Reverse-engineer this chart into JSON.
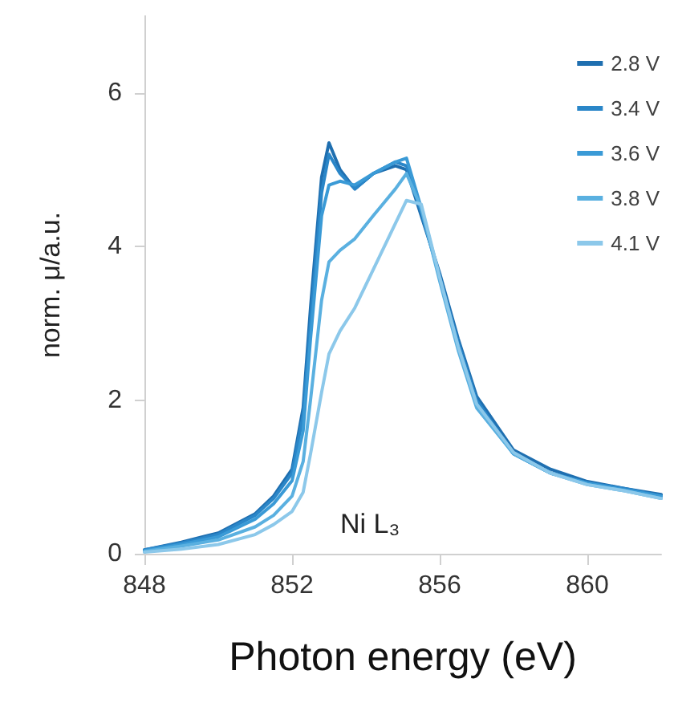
{
  "chart_data": {
    "type": "line",
    "xlabel": "Photon energy (eV)",
    "ylabel": "norm. μ/a.u.",
    "annotations": [
      "Ni L₃"
    ],
    "x": [
      848,
      849,
      850,
      851,
      851.5,
      852,
      852.3,
      852.5,
      852.8,
      853,
      853.3,
      853.7,
      854.2,
      854.8,
      855.1,
      855.5,
      856,
      856.5,
      857,
      858,
      859,
      860,
      861,
      862
    ],
    "series": [
      {
        "name": "2.8 V",
        "color": "#1f6fb0",
        "values": [
          0.05,
          0.15,
          0.27,
          0.52,
          0.75,
          1.1,
          1.9,
          3.2,
          4.9,
          5.35,
          5.0,
          4.75,
          4.95,
          5.05,
          5.0,
          4.4,
          3.65,
          2.8,
          2.05,
          1.35,
          1.1,
          0.94,
          0.85,
          0.77
        ]
      },
      {
        "name": "3.4 V",
        "color": "#2a86c8",
        "values": [
          0.05,
          0.14,
          0.25,
          0.5,
          0.72,
          1.05,
          1.8,
          3.0,
          4.7,
          5.2,
          4.95,
          4.75,
          4.95,
          5.1,
          5.05,
          4.45,
          3.6,
          2.75,
          2.0,
          1.3,
          1.05,
          0.92,
          0.85,
          0.75
        ]
      },
      {
        "name": "3.6 V",
        "color": "#3a9ad6",
        "values": [
          0.04,
          0.12,
          0.22,
          0.45,
          0.65,
          0.95,
          1.6,
          2.8,
          4.4,
          4.8,
          4.85,
          4.8,
          4.95,
          5.1,
          5.15,
          4.5,
          3.6,
          2.7,
          1.95,
          1.3,
          1.05,
          0.92,
          0.83,
          0.75
        ]
      },
      {
        "name": "3.8 V",
        "color": "#5ab0e0",
        "values": [
          0.03,
          0.1,
          0.18,
          0.35,
          0.5,
          0.75,
          1.2,
          2.0,
          3.3,
          3.8,
          3.95,
          4.1,
          4.4,
          4.75,
          4.95,
          4.5,
          3.55,
          2.65,
          1.9,
          1.3,
          1.05,
          0.9,
          0.82,
          0.72
        ]
      },
      {
        "name": "4.1 V",
        "color": "#8cc8ea",
        "values": [
          0.02,
          0.06,
          0.12,
          0.25,
          0.38,
          0.55,
          0.8,
          1.3,
          2.1,
          2.6,
          2.9,
          3.2,
          3.7,
          4.3,
          4.6,
          4.55,
          3.6,
          2.7,
          1.95,
          1.32,
          1.05,
          0.9,
          0.82,
          0.72
        ]
      }
    ],
    "xlim": [
      848,
      862
    ],
    "xticks": [
      848,
      852,
      856,
      860
    ],
    "ylim": [
      0,
      7
    ],
    "yticks": [
      0,
      2,
      4,
      6
    ],
    "legend": "top right",
    "grid": false,
    "marker": "none",
    "line_style": "solid"
  }
}
